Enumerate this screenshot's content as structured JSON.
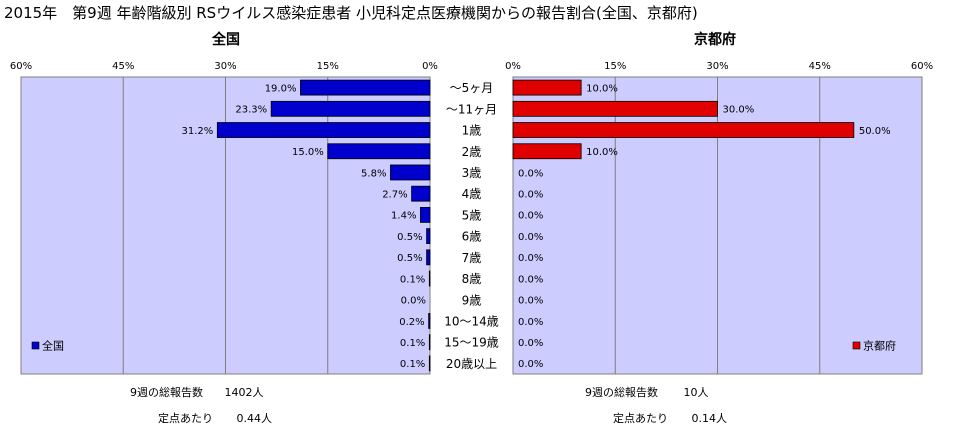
{
  "title": "2015年　第9週 年齢階級別 RSウイルス感染症患者 小児科定点医療機関からの報告割合(全国、京都府)",
  "colors": {
    "plot_bg": "#ccccff",
    "national": "#0000cc",
    "kyoto": "#e00000",
    "grid": "#7f7f7f"
  },
  "chart_data": [
    {
      "type": "bar",
      "orientation": "horizontal",
      "direction": "right-to-left",
      "title": "全国",
      "legend": "全国",
      "legend_position": "bottom-left",
      "xlim": [
        0,
        60
      ],
      "ticks": [
        "60%",
        "45%",
        "30%",
        "15%",
        "0%"
      ],
      "grid": true,
      "categories": [
        "～5ヶ月",
        "～11ヶ月",
        "1歳",
        "2歳",
        "3歳",
        "4歳",
        "5歳",
        "6歳",
        "7歳",
        "8歳",
        "9歳",
        "10～14歳",
        "15～19歳",
        "20歳以上"
      ],
      "values": [
        19.0,
        23.3,
        31.2,
        15.0,
        5.8,
        2.7,
        1.4,
        0.5,
        0.5,
        0.1,
        0.0,
        0.2,
        0.1,
        0.1
      ],
      "labels": [
        "19.0%",
        "23.3%",
        "31.2%",
        "15.0%",
        "5.8%",
        "2.7%",
        "1.4%",
        "0.5%",
        "0.5%",
        "0.1%",
        "0.0%",
        "0.2%",
        "0.1%",
        "0.1%"
      ]
    },
    {
      "type": "bar",
      "orientation": "horizontal",
      "direction": "left-to-right",
      "title": "京都府",
      "legend": "京都府",
      "legend_position": "bottom-right",
      "xlim": [
        0,
        60
      ],
      "ticks": [
        "0%",
        "15%",
        "30%",
        "45%",
        "60%"
      ],
      "grid": true,
      "categories": [
        "～5ヶ月",
        "～11ヶ月",
        "1歳",
        "2歳",
        "3歳",
        "4歳",
        "5歳",
        "6歳",
        "7歳",
        "8歳",
        "9歳",
        "10～14歳",
        "15～19歳",
        "20歳以上"
      ],
      "values": [
        10.0,
        30.0,
        50.0,
        10.0,
        0,
        0,
        0,
        0,
        0,
        0,
        0,
        0,
        0,
        0
      ],
      "labels": [
        "10.0%",
        "30.0%",
        "50.0%",
        "10.0%",
        "0.0%",
        "0.0%",
        "0.0%",
        "0.0%",
        "0.0%",
        "0.0%",
        "0.0%",
        "0.0%",
        "0.0%",
        "0.0%"
      ]
    }
  ],
  "footer": {
    "national": {
      "total_label": "9週の総報告数",
      "total_value": "1402人",
      "per_label": "定点あたり",
      "per_value": "0.44人"
    },
    "kyoto": {
      "total_label": "9週の総報告数",
      "total_value": "10人",
      "per_label": "定点あたり",
      "per_value": "0.14人"
    }
  }
}
